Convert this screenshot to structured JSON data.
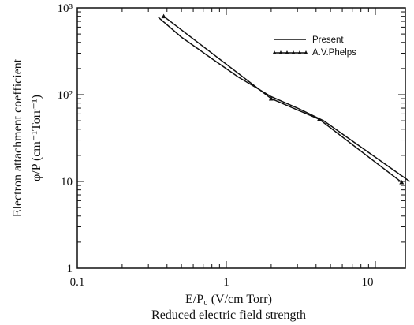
{
  "chart_data": {
    "type": "line",
    "x_scale": "log",
    "y_scale": "log",
    "xlim": [
      0.1,
      20
    ],
    "ylim": [
      1,
      1000
    ],
    "grid": false,
    "legend_position": "top-right",
    "x_tick_labels": [
      "0.1",
      "1",
      "10"
    ],
    "y_tick_labels": [
      "10³",
      "10²",
      "10",
      "1"
    ],
    "xlabel_line1": "E/P₀  (V/cm   Torr)",
    "xlabel_line2": "Reduced electric field strength",
    "ylabel_line1": "Electron attachment coefficient",
    "ylabel_line2": "φ/P  (cm⁻¹Torr⁻¹)",
    "series": [
      {
        "name": "Present",
        "style": "solid",
        "x": [
          0.35,
          0.5,
          0.8,
          1.2,
          2.0,
          3.0,
          4.5,
          6.5,
          10.0,
          17.0
        ],
        "y": [
          780,
          460,
          260,
          160,
          95,
          70,
          50,
          32,
          19,
          10
        ]
      },
      {
        "name": "A.V.Phelps",
        "style": "line-with-triangle-markers",
        "x": [
          0.38,
          2.0,
          4.2,
          15.0
        ],
        "y": [
          800,
          90,
          52,
          9.8
        ]
      }
    ]
  }
}
